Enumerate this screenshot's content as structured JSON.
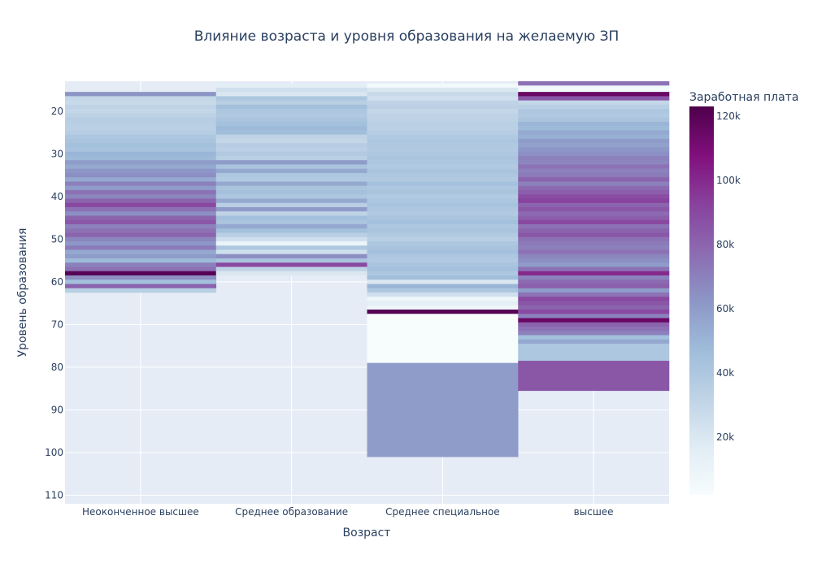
{
  "chart_data": {
    "type": "heatmap",
    "title": "Влияние возраста и уровня образования на желаемую ЗП",
    "xlabel": "Возраст",
    "ylabel": "Уровень образования",
    "categories": [
      "Неоконченное высшее",
      "Среднее образование",
      "Среднее специальное",
      "высшее"
    ],
    "yticks": [
      20,
      30,
      40,
      50,
      60,
      70,
      80,
      90,
      100,
      110
    ],
    "ylim": [
      13,
      112
    ],
    "colorbar": {
      "title": "Заработная плата",
      "ticks": [
        20000,
        40000,
        60000,
        80000,
        100000,
        120000
      ],
      "tick_labels": [
        "20k",
        "40k",
        "60k",
        "80k",
        "100k",
        "120k"
      ],
      "range": [
        2000,
        123000
      ]
    },
    "colorscale": [
      "#f7fcfd",
      "#e0ecf4",
      "#bfd3e6",
      "#9ebcda",
      "#8c96c6",
      "#8c6bb1",
      "#88419d",
      "#810f7c",
      "#4d004b"
    ],
    "series": [
      {
        "category": "Неоконченное высшее",
        "values": [
          [
            16,
            63000
          ],
          [
            17,
            30000
          ],
          [
            18,
            28000
          ],
          [
            19,
            32000
          ],
          [
            20,
            30000
          ],
          [
            21,
            33000
          ],
          [
            22,
            36000
          ],
          [
            23,
            35000
          ],
          [
            24,
            34000
          ],
          [
            25,
            36000
          ],
          [
            26,
            40000
          ],
          [
            27,
            42000
          ],
          [
            28,
            45000
          ],
          [
            29,
            43000
          ],
          [
            30,
            50000
          ],
          [
            31,
            48000
          ],
          [
            32,
            60000
          ],
          [
            33,
            55000
          ],
          [
            34,
            62000
          ],
          [
            35,
            65000
          ],
          [
            36,
            55000
          ],
          [
            37,
            70000
          ],
          [
            38,
            60000
          ],
          [
            39,
            75000
          ],
          [
            40,
            68000
          ],
          [
            41,
            80000
          ],
          [
            42,
            90000
          ],
          [
            43,
            75000
          ],
          [
            44,
            65000
          ],
          [
            45,
            80000
          ],
          [
            46,
            85000
          ],
          [
            47,
            70000
          ],
          [
            48,
            75000
          ],
          [
            49,
            80000
          ],
          [
            50,
            68000
          ],
          [
            51,
            62000
          ],
          [
            52,
            72000
          ],
          [
            53,
            55000
          ],
          [
            54,
            60000
          ],
          [
            55,
            48000
          ],
          [
            56,
            70000
          ],
          [
            57,
            75000
          ],
          [
            58,
            120000
          ],
          [
            59,
            65000
          ],
          [
            60,
            45000
          ],
          [
            61,
            80000
          ],
          [
            62,
            35000
          ]
        ]
      },
      {
        "category": "Среднее образование",
        "values": [
          [
            14,
            15000
          ],
          [
            15,
            25000
          ],
          [
            16,
            20000
          ],
          [
            17,
            40000
          ],
          [
            18,
            35000
          ],
          [
            19,
            45000
          ],
          [
            20,
            40000
          ],
          [
            21,
            38000
          ],
          [
            22,
            42000
          ],
          [
            23,
            45000
          ],
          [
            24,
            48000
          ],
          [
            25,
            46000
          ],
          [
            26,
            32000
          ],
          [
            27,
            30000
          ],
          [
            28,
            36000
          ],
          [
            29,
            34000
          ],
          [
            30,
            38000
          ],
          [
            31,
            35000
          ],
          [
            32,
            60000
          ],
          [
            33,
            42000
          ],
          [
            34,
            55000
          ],
          [
            35,
            40000
          ],
          [
            36,
            38000
          ],
          [
            37,
            55000
          ],
          [
            38,
            42000
          ],
          [
            39,
            45000
          ],
          [
            40,
            40000
          ],
          [
            41,
            55000
          ],
          [
            42,
            35000
          ],
          [
            43,
            60000
          ],
          [
            44,
            32000
          ],
          [
            45,
            45000
          ],
          [
            46,
            42000
          ],
          [
            47,
            55000
          ],
          [
            48,
            45000
          ],
          [
            49,
            35000
          ],
          [
            50,
            25000
          ],
          [
            51,
            10000
          ],
          [
            52,
            40000
          ],
          [
            53,
            25000
          ],
          [
            54,
            65000
          ],
          [
            55,
            42000
          ],
          [
            56,
            90000
          ],
          [
            57,
            32000
          ],
          [
            58,
            20000
          ]
        ]
      },
      {
        "category": "Среднее специальное",
        "values": [
          [
            14,
            5000
          ],
          [
            15,
            20000
          ],
          [
            16,
            28000
          ],
          [
            17,
            25000
          ],
          [
            18,
            32000
          ],
          [
            19,
            34000
          ],
          [
            20,
            30000
          ],
          [
            21,
            32000
          ],
          [
            22,
            33000
          ],
          [
            23,
            35000
          ],
          [
            24,
            34000
          ],
          [
            25,
            36000
          ],
          [
            26,
            38000
          ],
          [
            27,
            40000
          ],
          [
            28,
            39000
          ],
          [
            29,
            38000
          ],
          [
            30,
            40000
          ],
          [
            31,
            42000
          ],
          [
            32,
            40000
          ],
          [
            33,
            38000
          ],
          [
            34,
            42000
          ],
          [
            35,
            40000
          ],
          [
            36,
            38000
          ],
          [
            37,
            44000
          ],
          [
            38,
            40000
          ],
          [
            39,
            42000
          ],
          [
            40,
            38000
          ],
          [
            41,
            40000
          ],
          [
            42,
            43000
          ],
          [
            43,
            40000
          ],
          [
            44,
            38000
          ],
          [
            45,
            42000
          ],
          [
            46,
            45000
          ],
          [
            47,
            40000
          ],
          [
            48,
            42000
          ],
          [
            49,
            38000
          ],
          [
            50,
            35000
          ],
          [
            51,
            40000
          ],
          [
            52,
            42000
          ],
          [
            53,
            45000
          ],
          [
            54,
            40000
          ],
          [
            55,
            38000
          ],
          [
            56,
            42000
          ],
          [
            57,
            45000
          ],
          [
            58,
            40000
          ],
          [
            59,
            46000
          ],
          [
            60,
            20000
          ],
          [
            61,
            50000
          ],
          [
            62,
            40000
          ],
          [
            63,
            25000
          ],
          [
            64,
            8000
          ],
          [
            65,
            15000
          ],
          [
            66,
            8000
          ],
          [
            67,
            120000
          ],
          [
            68,
            2000
          ],
          [
            90,
            60000
          ]
        ]
      },
      {
        "category": "высшее",
        "values": [
          [
            13,
            75000
          ],
          [
            15,
            5000
          ],
          [
            16,
            115000
          ],
          [
            17,
            85000
          ],
          [
            18,
            30000
          ],
          [
            19,
            35000
          ],
          [
            20,
            40000
          ],
          [
            21,
            38000
          ],
          [
            22,
            42000
          ],
          [
            23,
            50000
          ],
          [
            24,
            48000
          ],
          [
            25,
            55000
          ],
          [
            26,
            52000
          ],
          [
            27,
            60000
          ],
          [
            28,
            58000
          ],
          [
            29,
            62000
          ],
          [
            30,
            65000
          ],
          [
            31,
            70000
          ],
          [
            32,
            68000
          ],
          [
            33,
            75000
          ],
          [
            34,
            70000
          ],
          [
            35,
            72000
          ],
          [
            36,
            80000
          ],
          [
            37,
            70000
          ],
          [
            38,
            78000
          ],
          [
            39,
            82000
          ],
          [
            40,
            88000
          ],
          [
            41,
            92000
          ],
          [
            42,
            80000
          ],
          [
            43,
            85000
          ],
          [
            44,
            78000
          ],
          [
            45,
            82000
          ],
          [
            46,
            90000
          ],
          [
            47,
            75000
          ],
          [
            48,
            80000
          ],
          [
            49,
            85000
          ],
          [
            50,
            75000
          ],
          [
            51,
            72000
          ],
          [
            52,
            70000
          ],
          [
            53,
            75000
          ],
          [
            54,
            68000
          ],
          [
            55,
            65000
          ],
          [
            56,
            60000
          ],
          [
            57,
            75000
          ],
          [
            58,
            100000
          ],
          [
            59,
            70000
          ],
          [
            60,
            78000
          ],
          [
            61,
            82000
          ],
          [
            62,
            60000
          ],
          [
            63,
            75000
          ],
          [
            64,
            90000
          ],
          [
            65,
            85000
          ],
          [
            66,
            80000
          ],
          [
            67,
            90000
          ],
          [
            68,
            70000
          ],
          [
            69,
            115000
          ],
          [
            70,
            80000
          ],
          [
            71,
            75000
          ],
          [
            72,
            70000
          ],
          [
            73,
            45000
          ],
          [
            74,
            55000
          ],
          [
            75,
            40000
          ],
          [
            82,
            85000
          ]
        ]
      }
    ]
  }
}
